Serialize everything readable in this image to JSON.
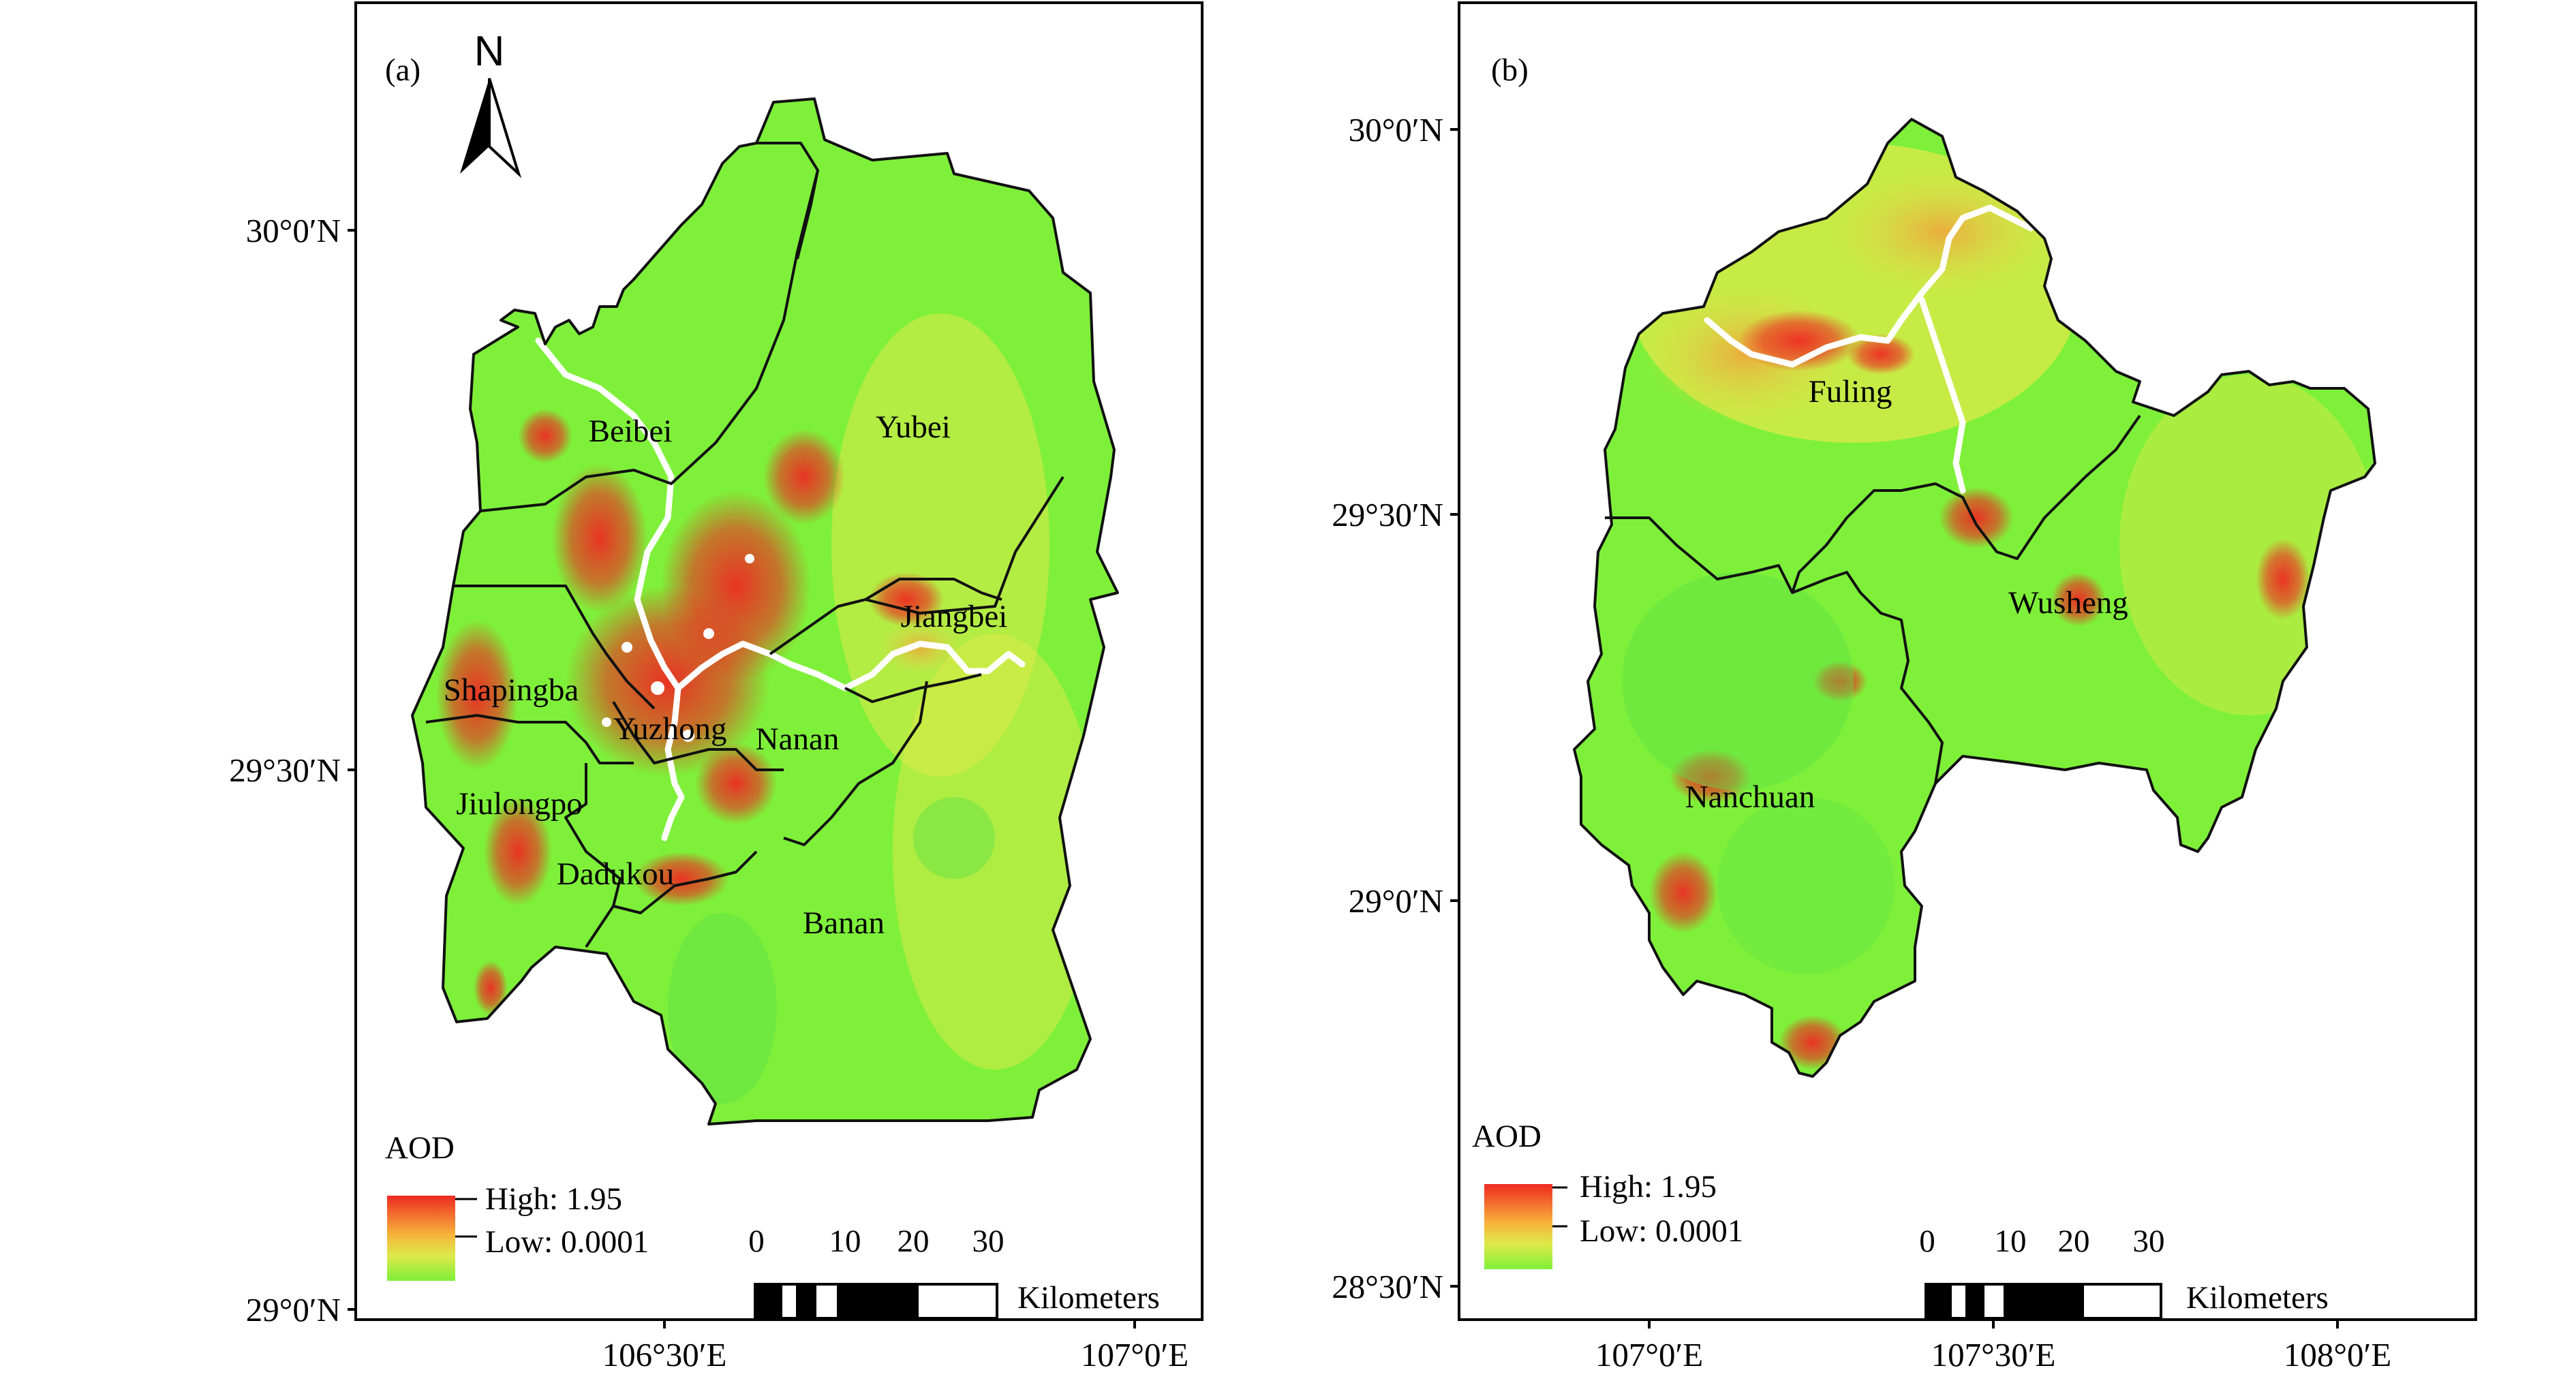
{
  "panels": [
    {
      "id": "a",
      "label": "(a)",
      "lat_ticks": [
        "30°0′N",
        "29°30′N",
        "29°0′N"
      ],
      "lon_ticks": [
        "106°30′E",
        "107°0′E"
      ],
      "districts": [
        "Beibei",
        "Yubei",
        "Jiangbei",
        "Shapingba",
        "Yuzhong",
        "Nanan",
        "Jiulongpo",
        "Dadukou",
        "Banan"
      ],
      "legend": {
        "title": "AOD",
        "high": "High: 1.95",
        "low": "Low: 0.0001"
      },
      "scale": {
        "ticks": [
          "0",
          "10",
          "20",
          "30"
        ],
        "unit": "Kilometers"
      },
      "north": "N"
    },
    {
      "id": "b",
      "label": "(b)",
      "lat_ticks": [
        "30°0′N",
        "29°30′N",
        "29°0′N",
        "28°30′N"
      ],
      "lon_ticks": [
        "107°0′E",
        "107°30′E",
        "108°0′E"
      ],
      "districts": [
        "Fuling",
        "Wusheng",
        "Nanchuan"
      ],
      "legend": {
        "title": "AOD",
        "high": "High: 1.95",
        "low": "Low: 0.0001"
      },
      "scale": {
        "ticks": [
          "0",
          "10",
          "20",
          "30"
        ],
        "unit": "Kilometers"
      }
    }
  ],
  "colors": {
    "aod_low": "#7ff03a",
    "aod_mid": "#dfe94a",
    "aod_high": "#ee2a22",
    "frame": "#000000"
  }
}
